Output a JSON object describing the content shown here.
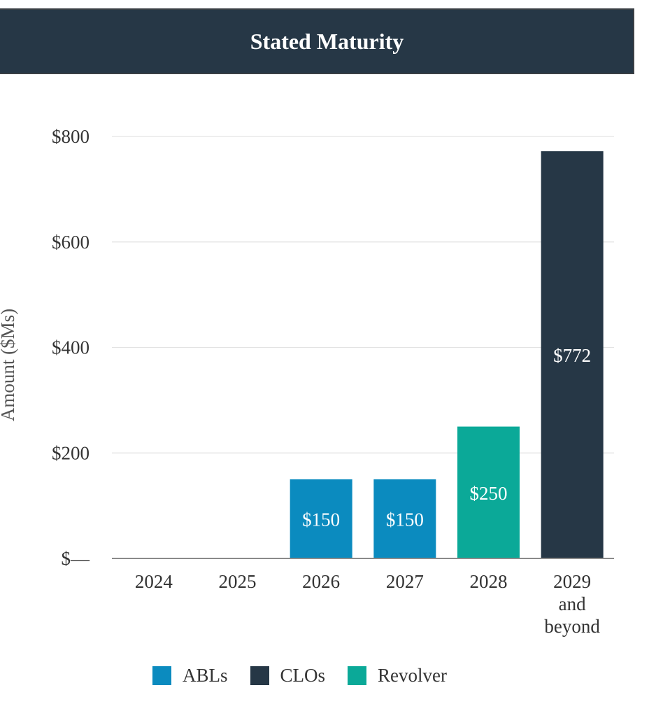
{
  "chart_data": {
    "type": "bar",
    "title": "Stated Maturity",
    "ylabel": "Amount ($Ms)",
    "xlabel": "",
    "ylim": [
      0,
      800
    ],
    "yticks": [
      0,
      200,
      400,
      600,
      800
    ],
    "ytick_labels": [
      "$—",
      "$200",
      "$400",
      "$600",
      "$800"
    ],
    "categories": [
      "2024",
      "2025",
      "2026",
      "2027",
      "2028",
      "2029 and beyond"
    ],
    "category_lines": [
      [
        "2024"
      ],
      [
        "2025"
      ],
      [
        "2026"
      ],
      [
        "2027"
      ],
      [
        "2028"
      ],
      [
        "2029",
        "and",
        "beyond"
      ]
    ],
    "series": [
      {
        "name": "ABLs",
        "color": "#0b8bbf",
        "values": [
          0,
          0,
          150,
          150,
          0,
          0
        ]
      },
      {
        "name": "CLOs",
        "color": "#263746",
        "values": [
          0,
          0,
          0,
          0,
          0,
          772
        ]
      },
      {
        "name": "Revolver",
        "color": "#0ba998",
        "values": [
          0,
          0,
          0,
          0,
          250,
          0
        ]
      }
    ],
    "data_labels": [
      "",
      "",
      "$150",
      "$150",
      "$250",
      "$772"
    ],
    "grid": true,
    "legend": "bottom-center"
  }
}
